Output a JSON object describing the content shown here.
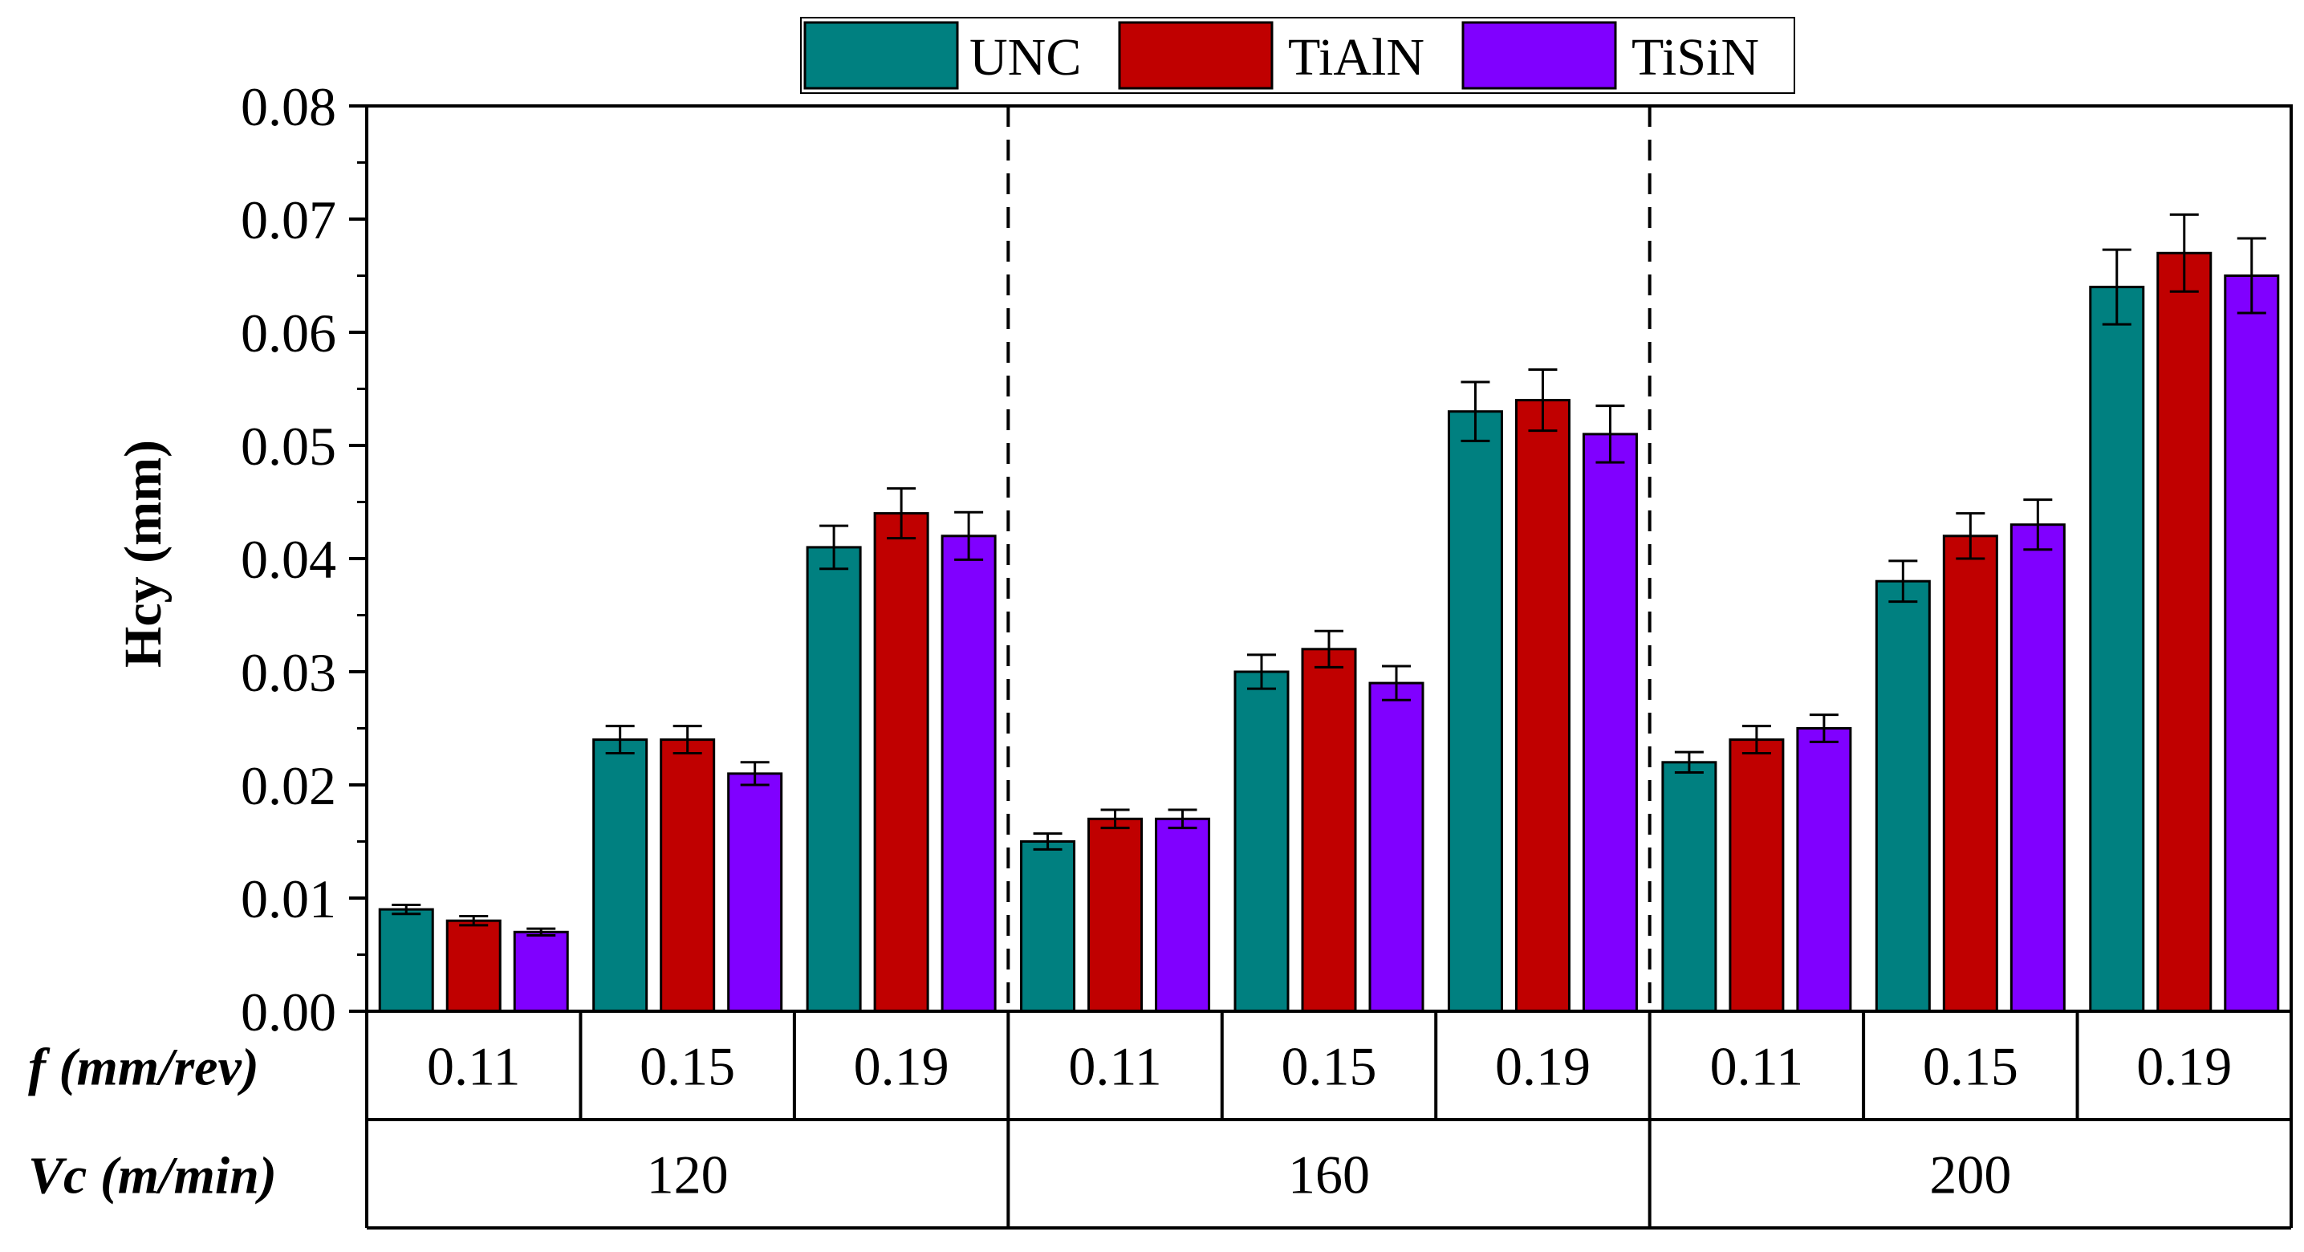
{
  "chart_data": {
    "type": "bar",
    "title": "",
    "ylabel": "Hcy (mm)",
    "ylim": [
      0,
      0.08
    ],
    "y_ticks": [
      "0.00",
      "0.01",
      "0.02",
      "0.03",
      "0.04",
      "0.05",
      "0.06",
      "0.07",
      "0.08"
    ],
    "grid": false,
    "legend_position": "top-center",
    "row_labels": {
      "feed": "f (mm/rev)",
      "speed": "Vc (m/min)"
    },
    "categories": [
      "0.11",
      "0.15",
      "0.19",
      "0.11",
      "0.15",
      "0.19",
      "0.11",
      "0.15",
      "0.19"
    ],
    "speed_groups": [
      {
        "label": "120",
        "span": 3
      },
      {
        "label": "160",
        "span": 3
      },
      {
        "label": "200",
        "span": 3
      }
    ],
    "series": [
      {
        "name": "UNC",
        "color": "#008080",
        "values": [
          0.009,
          0.024,
          0.041,
          0.015,
          0.03,
          0.053,
          0.022,
          0.038,
          0.064
        ],
        "errors": [
          0.0004,
          0.0012,
          0.0019,
          0.0007,
          0.0015,
          0.0026,
          0.0009,
          0.0018,
          0.0033
        ]
      },
      {
        "name": "TiAlN",
        "color": "#C00000",
        "values": [
          0.008,
          0.024,
          0.044,
          0.017,
          0.032,
          0.054,
          0.024,
          0.042,
          0.067
        ],
        "errors": [
          0.0004,
          0.0012,
          0.0022,
          0.0008,
          0.0016,
          0.0027,
          0.0012,
          0.002,
          0.0034
        ]
      },
      {
        "name": "TiSiN",
        "color": "#8000FF",
        "values": [
          0.007,
          0.021,
          0.042,
          0.017,
          0.029,
          0.051,
          0.025,
          0.043,
          0.065
        ],
        "errors": [
          0.0003,
          0.001,
          0.0021,
          0.0008,
          0.0015,
          0.0025,
          0.0012,
          0.0022,
          0.0033
        ]
      }
    ]
  }
}
